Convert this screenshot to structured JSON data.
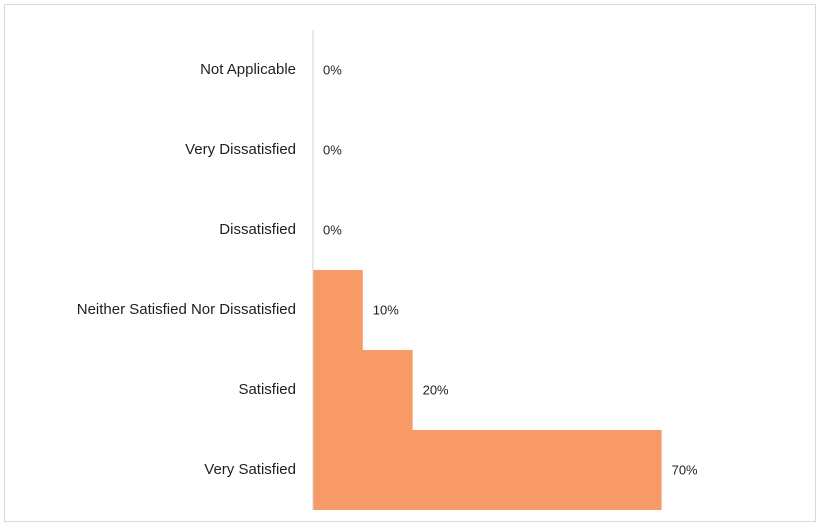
{
  "chart_data": {
    "type": "bar",
    "orientation": "horizontal",
    "categories": [
      "Not Applicable",
      "Very Dissatisfied",
      "Dissatisfied",
      "Neither Satisfied Nor Dissatisfied",
      "Satisfied",
      "Very Satisfied"
    ],
    "values": [
      0,
      0,
      0,
      10,
      20,
      70
    ],
    "data_labels": [
      "0%",
      "0%",
      "0%",
      "10%",
      "20%",
      "70%"
    ],
    "unit": "%",
    "xlim": [
      0,
      100
    ],
    "bar_color": "#F79A66",
    "axis_color": "#d0d0d0",
    "gap_between_bars": 0,
    "grid": false,
    "legend": "none",
    "title": "",
    "xlabel": "",
    "ylabel": ""
  }
}
